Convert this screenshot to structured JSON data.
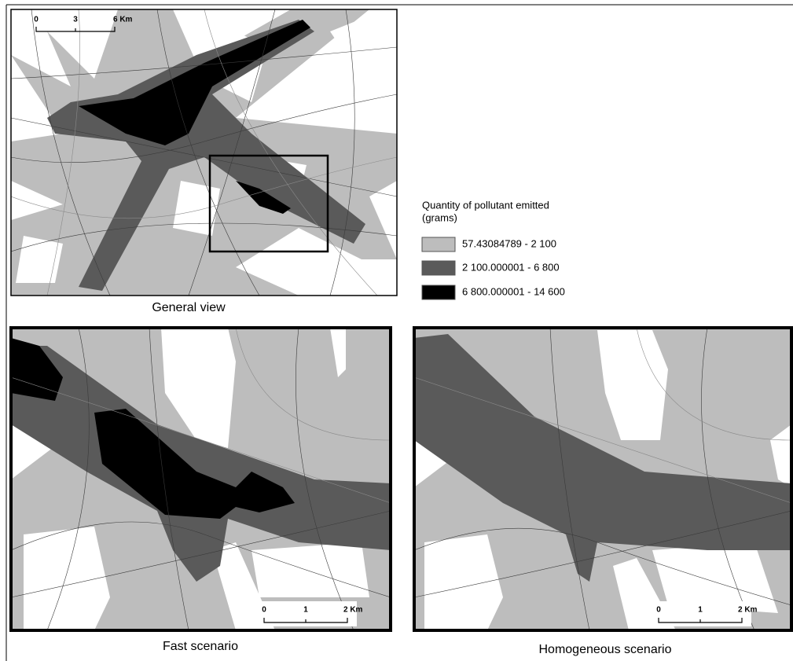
{
  "general_view": {
    "caption": "General view",
    "scale_bar": {
      "labels": [
        "0",
        "3",
        "6 Km"
      ]
    }
  },
  "fast_scenario": {
    "caption": "Fast scenario",
    "scale_bar": {
      "labels": [
        "0",
        "1",
        "2 Km"
      ]
    }
  },
  "homogeneous_scenario": {
    "caption": "Homogeneous scenario",
    "scale_bar": {
      "labels": [
        "0",
        "1",
        "2 Km"
      ]
    }
  },
  "legend": {
    "title": "Quantity of pollutant emitted",
    "unit": "(grams)",
    "items": [
      {
        "label": "57.43084789 - 2 100",
        "color": "#bdbdbd"
      },
      {
        "label": "2 100.000001 - 6 800",
        "color": "#5a5a5a"
      },
      {
        "label": "6 800.000001 - 14 600",
        "color": "#000000"
      }
    ]
  }
}
